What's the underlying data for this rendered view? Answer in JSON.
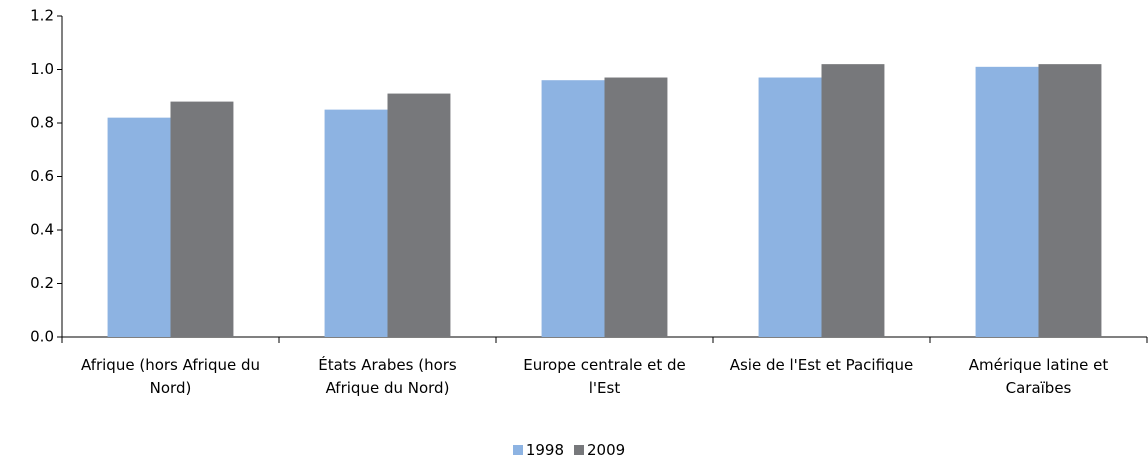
{
  "chart_data": {
    "type": "bar",
    "categories": [
      "Afrique (hors Afrique du Nord)",
      "États Arabes (hors Afrique du Nord)",
      "Europe centrale et de l'Est",
      "Asie de l'Est et Pacifique",
      "Amérique latine et Caraïbes"
    ],
    "series": [
      {
        "name": "1998",
        "color": "#8db3e2",
        "values": [
          0.82,
          0.85,
          0.96,
          0.97,
          1.01
        ]
      },
      {
        "name": "2009",
        "color": "#77787b",
        "values": [
          0.88,
          0.91,
          0.97,
          1.02,
          1.02
        ]
      }
    ],
    "ylim": [
      0,
      1.2
    ],
    "yticks": [
      {
        "value": 0,
        "label": "0.0"
      },
      0.2,
      0.4,
      0.6,
      0.8,
      {
        "value": 1,
        "label": "1.0"
      },
      1.2
    ],
    "legend": "bottom"
  }
}
